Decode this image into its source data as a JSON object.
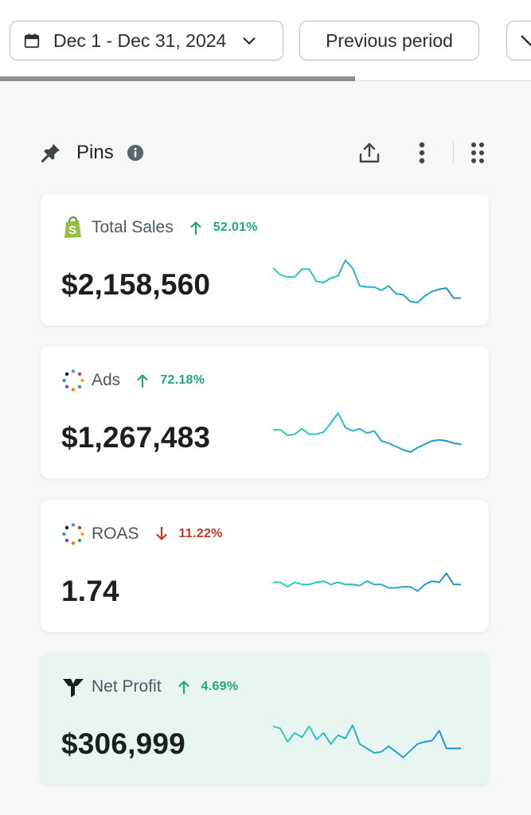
{
  "toolbar": {
    "date_range_label": "Dec 1 - Dec 31, 2024",
    "compare_label": "Previous period",
    "icons": [
      "calendar-icon",
      "chevron-down-icon"
    ]
  },
  "pins": {
    "title": "Pins",
    "icons": [
      "pin-icon",
      "info-icon",
      "share-icon",
      "kebab-menu-icon",
      "drag-grip-icon"
    ]
  },
  "colors": {
    "positive": "#23a870",
    "negative": "#c0392b",
    "spark_start": "#2fd4b5",
    "spark_end": "#1f8fd0",
    "highlight_card_bg": "#e9f5f1"
  },
  "cards": [
    {
      "title": "Total Sales",
      "logo": "shopify-icon",
      "delta": "52.01%",
      "direction": "up",
      "value": "$2,158,560",
      "highlighted": false,
      "spark": [
        33,
        27,
        25,
        25,
        32,
        32,
        21,
        20,
        24,
        26,
        40,
        33,
        17,
        16,
        16,
        13,
        17,
        10,
        9,
        3,
        2,
        8,
        12,
        14,
        15,
        6,
        6
      ]
    },
    {
      "title": "Ads",
      "logo": "ads-dots-icon",
      "delta": "72.18%",
      "direction": "up",
      "value": "$1,267,483",
      "highlighted": false,
      "spark": [
        25,
        25,
        20,
        21,
        26,
        21,
        21,
        23,
        31,
        40,
        27,
        24,
        26,
        22,
        24,
        15,
        13,
        10,
        7,
        5,
        9,
        12,
        15,
        16,
        15,
        13,
        12
      ]
    },
    {
      "title": "ROAS",
      "logo": "roas-dots-icon",
      "delta": "11.22%",
      "direction": "down",
      "value": "1.74",
      "highlighted": false,
      "spark": [
        26,
        26,
        22,
        26,
        24,
        24,
        26,
        27,
        24,
        26,
        24,
        24,
        23,
        27,
        24,
        24,
        21,
        21,
        22,
        22,
        18,
        24,
        27,
        26,
        34,
        24,
        24
      ]
    },
    {
      "title": "Net Profit",
      "logo": "triple-whale-icon",
      "delta": "4.69%",
      "direction": "up",
      "value": "$306,999",
      "highlighted": true,
      "spark": [
        34,
        32,
        20,
        28,
        24,
        34,
        22,
        28,
        18,
        26,
        23,
        35,
        18,
        14,
        10,
        11,
        16,
        11,
        6,
        12,
        18,
        20,
        21,
        30,
        14,
        14,
        14
      ]
    }
  ]
}
